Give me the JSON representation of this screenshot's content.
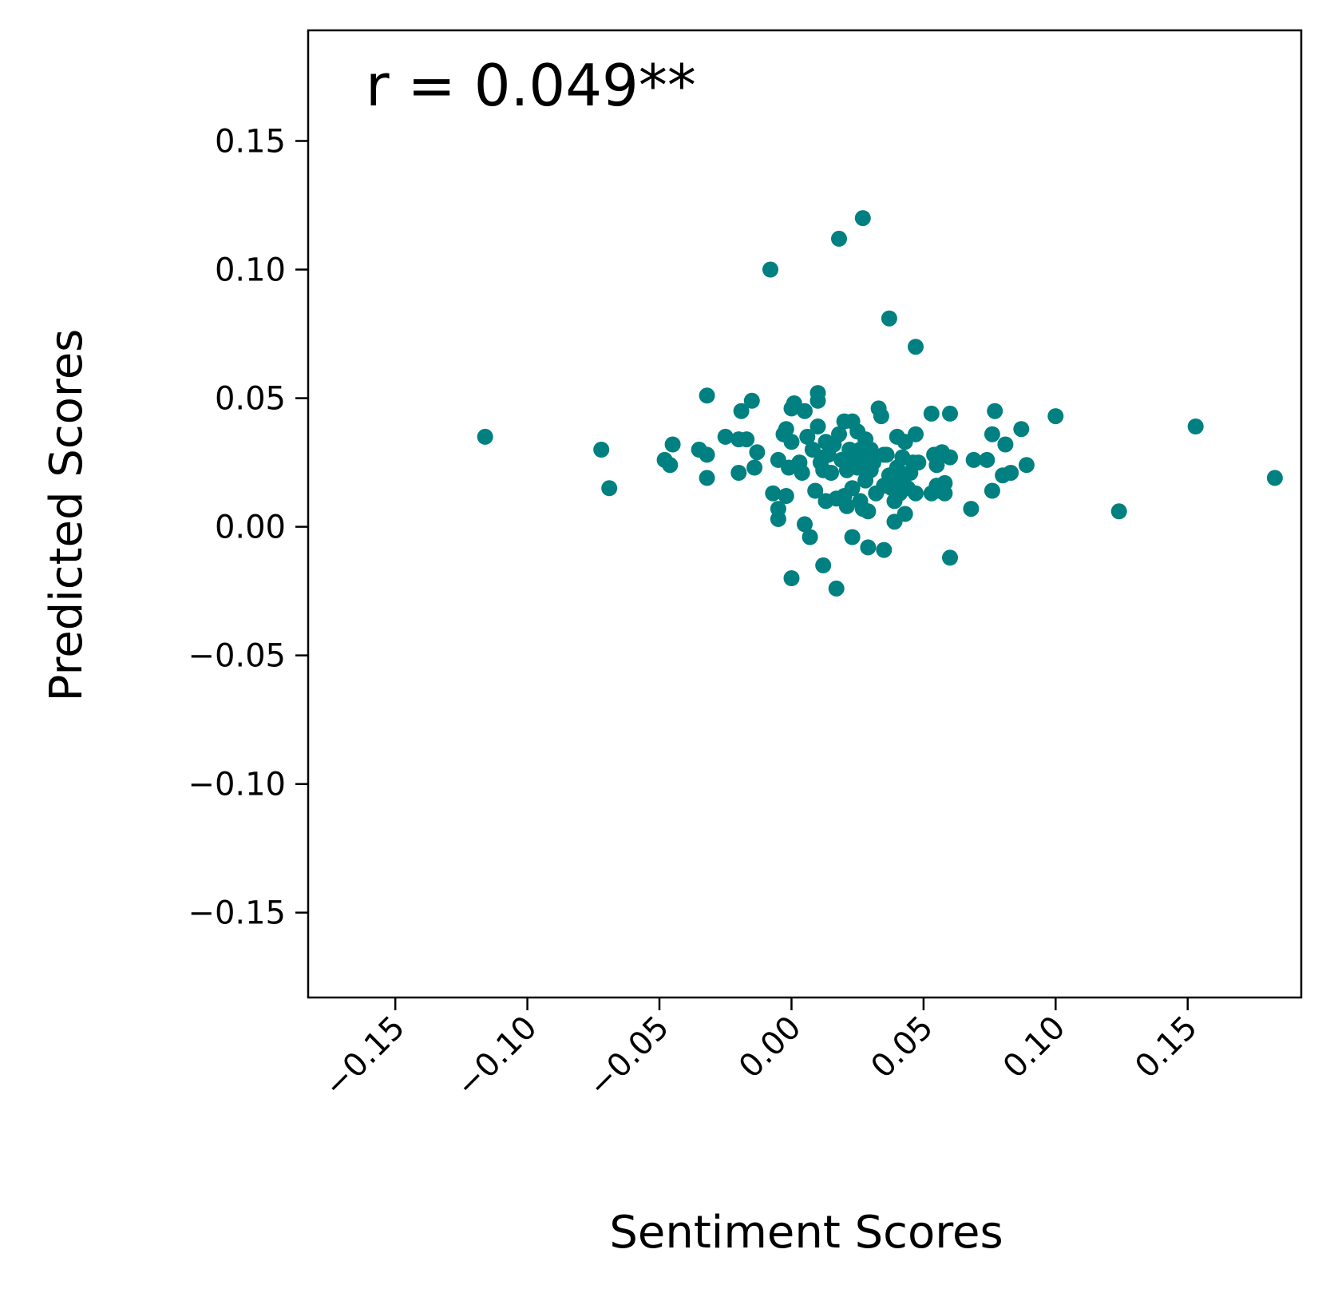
{
  "chart_data": {
    "type": "scatter",
    "title": "",
    "xlabel": "Sentiment Scores",
    "ylabel": "Predicted Scores",
    "annotation": "r = 0.049**",
    "xlim": [
      -0.183,
      0.193
    ],
    "ylim": [
      -0.183,
      0.193
    ],
    "x_ticks": [
      -0.15,
      -0.1,
      -0.05,
      0.0,
      0.05,
      0.1,
      0.15
    ],
    "x_tick_labels": [
      "−0.15",
      "−0.10",
      "−0.05",
      "0.00",
      "0.05",
      "0.10",
      "0.15"
    ],
    "y_ticks": [
      -0.15,
      -0.1,
      -0.05,
      0.0,
      0.05,
      0.1,
      0.15
    ],
    "y_tick_labels": [
      "−0.15",
      "−0.10",
      "−0.05",
      "0.00",
      "0.05",
      "0.10",
      "0.15"
    ],
    "x_tick_rotation_deg": 45,
    "grid": false,
    "marker_color": "#008080",
    "series": [
      {
        "points": [
          [
            -0.116,
            0.035
          ],
          [
            -0.072,
            0.03
          ],
          [
            -0.069,
            0.015
          ],
          [
            -0.048,
            0.026
          ],
          [
            -0.046,
            0.024
          ],
          [
            -0.045,
            0.032
          ],
          [
            -0.035,
            0.03
          ],
          [
            -0.032,
            0.028
          ],
          [
            -0.032,
            0.019
          ],
          [
            -0.032,
            0.051
          ],
          [
            -0.025,
            0.035
          ],
          [
            -0.02,
            0.034
          ],
          [
            -0.02,
            0.021
          ],
          [
            -0.019,
            0.045
          ],
          [
            -0.017,
            0.034
          ],
          [
            -0.015,
            0.049
          ],
          [
            -0.014,
            0.023
          ],
          [
            -0.013,
            0.029
          ],
          [
            -0.008,
            0.1
          ],
          [
            -0.007,
            0.013
          ],
          [
            -0.005,
            0.003
          ],
          [
            -0.005,
            0.007
          ],
          [
            -0.005,
            0.026
          ],
          [
            -0.003,
            0.036
          ],
          [
            -0.002,
            0.038
          ],
          [
            -0.002,
            0.012
          ],
          [
            -0.001,
            0.023
          ],
          [
            0.0,
            0.046
          ],
          [
            0.0,
            0.033
          ],
          [
            0.0,
            -0.02
          ],
          [
            0.001,
            0.048
          ],
          [
            0.003,
            0.025
          ],
          [
            0.004,
            0.021
          ],
          [
            0.005,
            0.001
          ],
          [
            0.005,
            0.045
          ],
          [
            0.006,
            0.035
          ],
          [
            0.007,
            -0.004
          ],
          [
            0.008,
            0.03
          ],
          [
            0.009,
            0.014
          ],
          [
            0.01,
            0.052
          ],
          [
            0.01,
            0.039
          ],
          [
            0.01,
            0.049
          ],
          [
            0.011,
            0.025
          ],
          [
            0.012,
            0.027
          ],
          [
            0.012,
            0.022
          ],
          [
            0.012,
            -0.015
          ],
          [
            0.013,
            0.01
          ],
          [
            0.013,
            0.033
          ],
          [
            0.014,
            0.028
          ],
          [
            0.015,
            0.021
          ],
          [
            0.016,
            0.032
          ],
          [
            0.017,
            0.011
          ],
          [
            0.017,
            -0.024
          ],
          [
            0.018,
            0.112
          ],
          [
            0.018,
            0.036
          ],
          [
            0.019,
            0.026
          ],
          [
            0.02,
            0.041
          ],
          [
            0.02,
            0.012
          ],
          [
            0.021,
            0.022
          ],
          [
            0.021,
            0.008
          ],
          [
            0.022,
            0.03
          ],
          [
            0.023,
            0.041
          ],
          [
            0.023,
            -0.004
          ],
          [
            0.023,
            0.015
          ],
          [
            0.024,
            0.027
          ],
          [
            0.025,
            0.037
          ],
          [
            0.025,
            0.023
          ],
          [
            0.026,
            0.01
          ],
          [
            0.026,
            0.03
          ],
          [
            0.027,
            0.12
          ],
          [
            0.027,
            0.025
          ],
          [
            0.027,
            0.007
          ],
          [
            0.028,
            0.034
          ],
          [
            0.028,
            0.018
          ],
          [
            0.029,
            0.006
          ],
          [
            0.029,
            -0.008
          ],
          [
            0.03,
            0.03
          ],
          [
            0.03,
            0.022
          ],
          [
            0.031,
            0.025
          ],
          [
            0.032,
            0.013
          ],
          [
            0.033,
            0.046
          ],
          [
            0.034,
            0.043
          ],
          [
            0.035,
            0.028
          ],
          [
            0.035,
            0.016
          ],
          [
            0.035,
            -0.009
          ],
          [
            0.036,
            0.028
          ],
          [
            0.037,
            0.081
          ],
          [
            0.037,
            0.02
          ],
          [
            0.038,
            0.015
          ],
          [
            0.039,
            0.01
          ],
          [
            0.039,
            0.002
          ],
          [
            0.04,
            0.035
          ],
          [
            0.04,
            0.023
          ],
          [
            0.041,
            0.013
          ],
          [
            0.042,
            0.027
          ],
          [
            0.042,
            0.018
          ],
          [
            0.043,
            0.005
          ],
          [
            0.043,
            0.033
          ],
          [
            0.044,
            0.015
          ],
          [
            0.045,
            0.021
          ],
          [
            0.046,
            0.025
          ],
          [
            0.047,
            0.07
          ],
          [
            0.047,
            0.036
          ],
          [
            0.047,
            0.013
          ],
          [
            0.048,
            0.025
          ],
          [
            0.053,
            0.044
          ],
          [
            0.053,
            0.013
          ],
          [
            0.054,
            0.028
          ],
          [
            0.055,
            0.016
          ],
          [
            0.055,
            0.024
          ],
          [
            0.056,
            0.014
          ],
          [
            0.057,
            0.029
          ],
          [
            0.058,
            0.017
          ],
          [
            0.058,
            0.013
          ],
          [
            0.06,
            0.044
          ],
          [
            0.06,
            0.027
          ],
          [
            0.06,
            -0.012
          ],
          [
            0.068,
            0.007
          ],
          [
            0.069,
            0.026
          ],
          [
            0.074,
            0.026
          ],
          [
            0.076,
            0.036
          ],
          [
            0.076,
            0.014
          ],
          [
            0.077,
            0.045
          ],
          [
            0.08,
            0.02
          ],
          [
            0.081,
            0.032
          ],
          [
            0.083,
            0.021
          ],
          [
            0.087,
            0.038
          ],
          [
            0.089,
            0.024
          ],
          [
            0.1,
            0.043
          ],
          [
            0.124,
            0.006
          ],
          [
            0.153,
            0.039
          ],
          [
            0.183,
            0.019
          ]
        ]
      }
    ]
  }
}
